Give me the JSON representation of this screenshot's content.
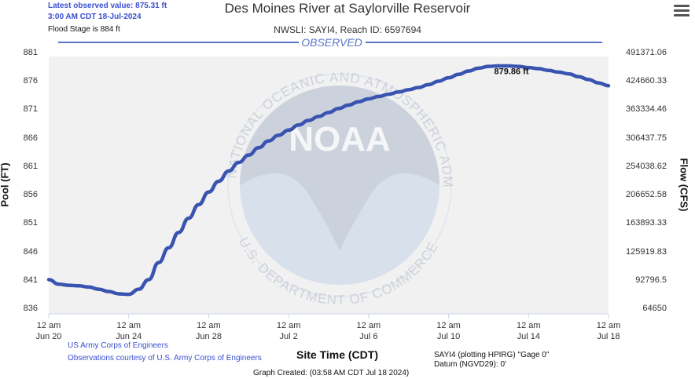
{
  "header": {
    "title": "Des Moines River at Saylorville Reservoir",
    "subtitle": "NWSLI: SAYI4, Reach ID: 6597694",
    "latest_line1": "Latest observed value: 875.31 ft",
    "latest_line2": "3:00 AM CDT 18-Jul-2024",
    "flood_stage": "Flood Stage is 884 ft"
  },
  "colors": {
    "series": "#3953b0",
    "observed_line": "#5b74c8",
    "plot_background": "#f1f1f1",
    "watermark": "#d0d8e6"
  },
  "icons": {
    "menu": "hamburger-menu-icon",
    "watermark": "noaa-logo-icon"
  },
  "observed_label": "OBSERVED",
  "peak_label": "879.86 ft",
  "watermark_text": {
    "top": "NATIONAL OCEANIC AND ATMOSPHERIC ADMINISTRATION",
    "bottom": "U.S. DEPARTMENT OF COMMERCE",
    "center": "NOAA"
  },
  "footer": {
    "credit1": "US Army Corps of Engineers",
    "credit2": "Observations courtesy of U.S. Army Corps of Engineers",
    "datum1": "SAYI4 (plotting HPIRG) \"Gage 0\"",
    "datum2": "Datum (NGVD29): 0'",
    "created": "Graph Created: (03:58 AM CDT Jul 18 2024)"
  },
  "chart_data": {
    "type": "line",
    "title": "Des Moines River at Saylorville Reservoir",
    "xlabel": "Site Time (CDT)",
    "ylabel": "Pool (FT)",
    "y2label": "Flow (CFS)",
    "ylim": [
      836,
      881
    ],
    "xlim": [
      "2024-06-20 00:00",
      "2024-07-18 00:00"
    ],
    "y_ticks": [
      881,
      876,
      871,
      866,
      861,
      856,
      851,
      846,
      841,
      836
    ],
    "y2_ticks": [
      "491371.06",
      "424660.33",
      "363334.46",
      "306437.75",
      "254038.62",
      "206652.58",
      "163893.33",
      "125919.83",
      "92796.5",
      "64650"
    ],
    "x_ticks": [
      {
        "time": "12 am",
        "date": "Jun 20",
        "value": "2024-06-20 00:00"
      },
      {
        "time": "12 am",
        "date": "Jun 24",
        "value": "2024-06-24 00:00"
      },
      {
        "time": "12 am",
        "date": "Jun 28",
        "value": "2024-06-28 00:00"
      },
      {
        "time": "12 am",
        "date": "Jul 2",
        "value": "2024-07-02 00:00"
      },
      {
        "time": "12 am",
        "date": "Jul 6",
        "value": "2024-07-06 00:00"
      },
      {
        "time": "12 am",
        "date": "Jul 10",
        "value": "2024-07-10 00:00"
      },
      {
        "time": "12 am",
        "date": "Jul 14",
        "value": "2024-07-14 00:00"
      },
      {
        "time": "12 am",
        "date": "Jul 18",
        "value": "2024-07-18 00:00"
      }
    ],
    "series": [
      {
        "name": "Observed",
        "x": [
          "2024-06-20 00:00",
          "2024-06-20 12:00",
          "2024-06-21 00:00",
          "2024-06-21 12:00",
          "2024-06-22 00:00",
          "2024-06-22 12:00",
          "2024-06-23 00:00",
          "2024-06-23 12:00",
          "2024-06-24 00:00",
          "2024-06-24 12:00",
          "2024-06-25 00:00",
          "2024-06-25 12:00",
          "2024-06-26 00:00",
          "2024-06-26 12:00",
          "2024-06-27 00:00",
          "2024-06-27 12:00",
          "2024-06-28 00:00",
          "2024-06-28 12:00",
          "2024-06-29 00:00",
          "2024-06-29 12:00",
          "2024-06-30 00:00",
          "2024-06-30 12:00",
          "2024-07-01 00:00",
          "2024-07-01 12:00",
          "2024-07-02 00:00",
          "2024-07-02 12:00",
          "2024-07-03 00:00",
          "2024-07-03 12:00",
          "2024-07-04 00:00",
          "2024-07-04 12:00",
          "2024-07-05 00:00",
          "2024-07-05 12:00",
          "2024-07-06 00:00",
          "2024-07-06 12:00",
          "2024-07-07 00:00",
          "2024-07-07 12:00",
          "2024-07-08 00:00",
          "2024-07-08 12:00",
          "2024-07-09 00:00",
          "2024-07-09 12:00",
          "2024-07-10 00:00",
          "2024-07-10 12:00",
          "2024-07-11 00:00",
          "2024-07-11 12:00",
          "2024-07-12 00:00",
          "2024-07-12 12:00",
          "2024-07-13 00:00",
          "2024-07-13 12:00",
          "2024-07-14 00:00",
          "2024-07-14 12:00",
          "2024-07-15 00:00",
          "2024-07-15 12:00",
          "2024-07-16 00:00",
          "2024-07-16 12:00",
          "2024-07-17 00:00",
          "2024-07-17 12:00",
          "2024-07-18 00:00"
        ],
        "y": [
          841.2,
          840.4,
          840.2,
          840.1,
          839.9,
          839.5,
          839.1,
          838.7,
          838.6,
          839.5,
          841.2,
          844.2,
          846.8,
          849.5,
          852.0,
          854.4,
          856.6,
          858.5,
          860.3,
          861.8,
          863.1,
          864.4,
          865.6,
          866.6,
          867.5,
          868.4,
          869.2,
          869.9,
          870.6,
          871.3,
          871.9,
          872.5,
          873.0,
          873.4,
          873.8,
          874.2,
          874.6,
          875.0,
          875.5,
          876.1,
          876.7,
          877.3,
          877.9,
          878.4,
          878.7,
          878.8,
          878.8,
          878.7,
          878.5,
          878.3,
          878.0,
          877.7,
          877.4,
          876.9,
          876.4,
          875.8,
          875.3
        ]
      }
    ],
    "peak": {
      "x": "2024-07-12 18:00",
      "y": 879.86
    },
    "grid": false,
    "legend": "none"
  }
}
